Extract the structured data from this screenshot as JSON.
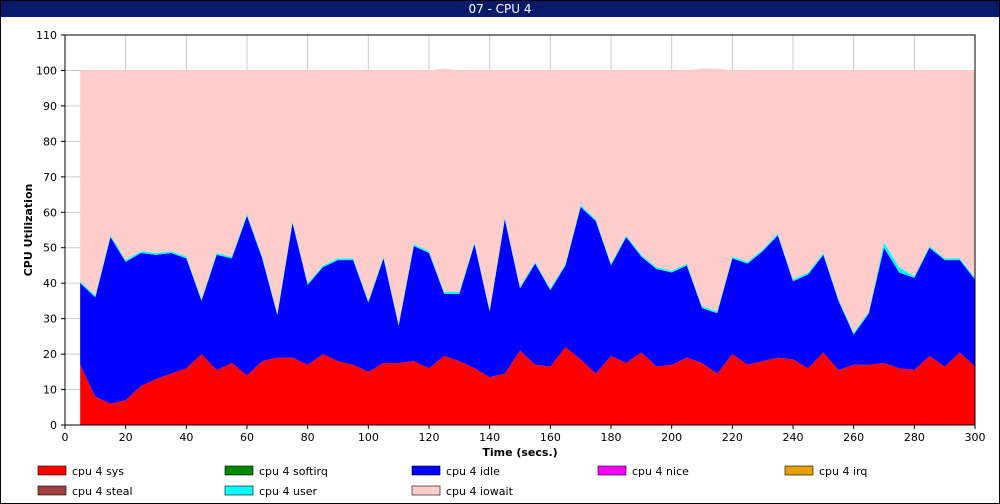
{
  "window": {
    "title": "07 - CPU 4"
  },
  "chart_data": {
    "type": "area",
    "stacked": true,
    "title": "07 - CPU 4",
    "xlabel": "Time (secs.)",
    "ylabel": "CPU Utilization",
    "xlim": [
      0,
      300
    ],
    "ylim": [
      0,
      110
    ],
    "x_ticks": [
      0,
      20,
      40,
      60,
      80,
      100,
      120,
      140,
      160,
      180,
      200,
      220,
      240,
      260,
      280,
      300
    ],
    "y_ticks": [
      0,
      10,
      20,
      30,
      40,
      50,
      60,
      70,
      80,
      90,
      100,
      110
    ],
    "grid": true,
    "legend_position": "bottom",
    "x": [
      5,
      10,
      15,
      20,
      25,
      30,
      35,
      40,
      45,
      50,
      55,
      60,
      65,
      70,
      75,
      80,
      85,
      90,
      95,
      100,
      105,
      110,
      115,
      120,
      125,
      130,
      135,
      140,
      145,
      150,
      155,
      160,
      165,
      170,
      175,
      180,
      185,
      190,
      195,
      200,
      205,
      210,
      215,
      220,
      225,
      230,
      235,
      240,
      245,
      250,
      255,
      260,
      265,
      270,
      275,
      280,
      285,
      290,
      295,
      300
    ],
    "series": [
      {
        "name": "cpu 4 sys",
        "color": "#ff0000",
        "values": [
          17,
          8,
          6,
          7,
          11,
          13,
          14.5,
          16,
          20,
          15.5,
          17.5,
          14,
          18,
          19,
          19,
          17,
          20,
          18,
          17,
          15,
          17.5,
          17.5,
          18,
          16,
          19.5,
          18,
          16,
          13.5,
          14.5,
          21,
          17,
          16.5,
          22,
          18.5,
          14.5,
          19.5,
          17.5,
          20.5,
          16.5,
          17,
          19,
          17.5,
          14.5,
          20,
          17,
          18,
          19,
          18.5,
          16,
          20.5,
          15.5,
          17,
          17,
          17.5,
          16,
          15.5,
          19.5,
          16.5,
          20.5,
          16.5
        ]
      },
      {
        "name": "cpu 4 softirq",
        "color": "#008800",
        "values": [
          0,
          0,
          0,
          0,
          0,
          0,
          0,
          0,
          0,
          0,
          0,
          0,
          0,
          0,
          0,
          0,
          0,
          0,
          0,
          0,
          0,
          0,
          0,
          0,
          0,
          0,
          0,
          0,
          0,
          0,
          0,
          0,
          0,
          0,
          0,
          0,
          0,
          0,
          0,
          0,
          0,
          0,
          0,
          0,
          0,
          0,
          0,
          0,
          0,
          0,
          0,
          0,
          0,
          0,
          0,
          0,
          0,
          0,
          0,
          0
        ]
      },
      {
        "name": "cpu 4 idle",
        "color": "#0000ff",
        "values": [
          23,
          28,
          47,
          39,
          37.5,
          35,
          34,
          31,
          15,
          32.5,
          29.5,
          45,
          29,
          12,
          38,
          22.5,
          24.5,
          28.5,
          29.5,
          19.5,
          29.5,
          10.5,
          32.5,
          32.5,
          17.5,
          19,
          35,
          18.5,
          43.5,
          17.5,
          28.5,
          21.5,
          23,
          43,
          43,
          25.5,
          35.5,
          27,
          27.5,
          26,
          26,
          15.5,
          17,
          27,
          28.5,
          31,
          34.5,
          22,
          26.5,
          27.5,
          19.5,
          8.5,
          14.5,
          32.5,
          27,
          26,
          30.5,
          30,
          26,
          24.5
        ]
      },
      {
        "name": "cpu 4 nice",
        "color": "#ff00ff",
        "values": [
          0,
          0,
          0,
          0,
          0,
          0,
          0,
          0,
          0,
          0,
          0,
          0,
          0,
          0,
          0,
          0,
          0,
          0,
          0,
          0,
          0,
          0,
          0,
          0,
          0,
          0,
          0,
          0,
          0,
          0,
          0,
          0,
          0,
          0,
          0,
          0,
          0,
          0,
          0,
          0,
          0,
          0,
          0,
          0,
          0,
          0,
          0,
          0,
          0,
          0,
          0,
          0,
          0,
          0,
          0,
          0,
          0,
          0,
          0,
          0
        ]
      },
      {
        "name": "cpu 4 irq",
        "color": "#e8a000",
        "values": [
          0,
          0,
          0,
          0,
          0,
          0,
          0,
          0,
          0,
          0,
          0,
          0,
          0,
          0,
          0,
          0,
          0,
          0,
          0,
          0,
          0,
          0,
          0,
          0,
          0,
          0,
          0,
          0,
          0,
          0,
          0,
          0,
          0,
          0,
          0,
          0,
          0,
          0,
          0,
          0,
          0,
          0,
          0,
          0,
          0,
          0,
          0,
          0,
          0,
          0,
          0,
          0,
          0,
          0,
          0,
          0,
          0,
          0,
          0,
          0
        ]
      },
      {
        "name": "cpu 4 steal",
        "color": "#a04040",
        "values": [
          0,
          0,
          0,
          0,
          0,
          0,
          0,
          0,
          0,
          0,
          0,
          0,
          0,
          0,
          0,
          0,
          0,
          0,
          0,
          0,
          0,
          0,
          0,
          0,
          0,
          0,
          0,
          0,
          0,
          0,
          0,
          0,
          0,
          0,
          0,
          0,
          0,
          0,
          0,
          0,
          0,
          0,
          0,
          0,
          0,
          0,
          0,
          0,
          0,
          0,
          0,
          0,
          0,
          0,
          0,
          0,
          0,
          0,
          0,
          0
        ]
      },
      {
        "name": "cpu 4 user",
        "color": "#00ffff",
        "values": [
          0.5,
          0.5,
          0.5,
          0.5,
          0.5,
          0.5,
          0.5,
          0.5,
          0.5,
          0.5,
          0.5,
          0.5,
          0.5,
          0.5,
          0.5,
          0.5,
          0.5,
          0.5,
          0.5,
          0.5,
          0.5,
          0.5,
          0.5,
          0.5,
          0.5,
          0.5,
          0.5,
          0.5,
          0.5,
          0.5,
          0.5,
          0.5,
          0.5,
          0.5,
          0.5,
          0.5,
          0.5,
          0.5,
          0.5,
          0.5,
          0.5,
          0.5,
          0.5,
          0.5,
          0.5,
          0.5,
          0.5,
          0.5,
          0.5,
          0.5,
          0.5,
          0.5,
          0.5,
          1.5,
          1.5,
          0.5,
          0.5,
          0.5,
          0.5,
          0.5
        ]
      },
      {
        "name": "cpu 4 iowait",
        "color": "#ffcccc",
        "values": [
          59.5,
          63.5,
          46.5,
          53.5,
          51,
          51.5,
          51,
          52.5,
          64.5,
          51.5,
          52.5,
          40.5,
          52.5,
          68.5,
          42.5,
          60,
          55,
          53,
          53,
          65,
          52.5,
          71.5,
          49,
          51,
          63,
          62.5,
          48.5,
          67.5,
          41.5,
          61,
          54,
          61.5,
          54.5,
          38,
          42,
          54.5,
          46.5,
          52,
          55.5,
          56.5,
          54.5,
          67,
          68.5,
          52.5,
          54,
          50.5,
          46,
          59,
          57,
          51.5,
          64.5,
          74,
          68,
          48.5,
          55.5,
          58,
          49.5,
          53,
          53,
          58.5
        ]
      }
    ]
  }
}
